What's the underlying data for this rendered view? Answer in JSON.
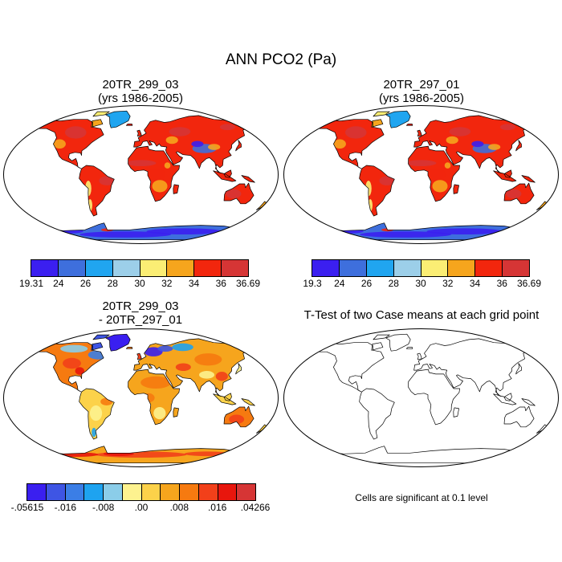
{
  "title": "ANN PCO2 (Pa)",
  "colors": {
    "scale": [
      "#3b1ff0",
      "#3e6fdd",
      "#20a5f0",
      "#9ccfe9",
      "#fbee74",
      "#f6a51d",
      "#f2260d",
      "#d63535"
    ],
    "diff_scale": [
      "#3a1ff0",
      "#3e55e4",
      "#3b7ee6",
      "#1ea3f0",
      "#8bcde9",
      "#fdf28f",
      "#fcd24a",
      "#f6a51d",
      "#f67a10",
      "#f2401a",
      "#e8160d",
      "#d63535"
    ],
    "coast": "#000000",
    "ocean": "#ffffff"
  },
  "panels": [
    {
      "id": "p1",
      "title_line1": "20TR_299_03",
      "title_line2": "(yrs 1986-2005)",
      "colorbar_labels": [
        "19.31",
        "24",
        "26",
        "28",
        "30",
        "32",
        "34",
        "36",
        "36.69"
      ]
    },
    {
      "id": "p2",
      "title_line1": "20TR_297_01",
      "title_line2": "(yrs 1986-2005)",
      "colorbar_labels": [
        "19.3",
        "24",
        "26",
        "28",
        "30",
        "32",
        "34",
        "36",
        "36.69"
      ]
    },
    {
      "id": "p3",
      "title_line1": "20TR_299_03",
      "title_line2": "- 20TR_297_01",
      "colorbar_labels": [
        "-.05615",
        "-.016",
        "-.008",
        ".00",
        ".008",
        ".016",
        ".04266"
      ]
    },
    {
      "id": "p4",
      "title": "T-Test of two Case means at each grid point",
      "note": "Cells are significant at 0.1 level"
    }
  ]
}
